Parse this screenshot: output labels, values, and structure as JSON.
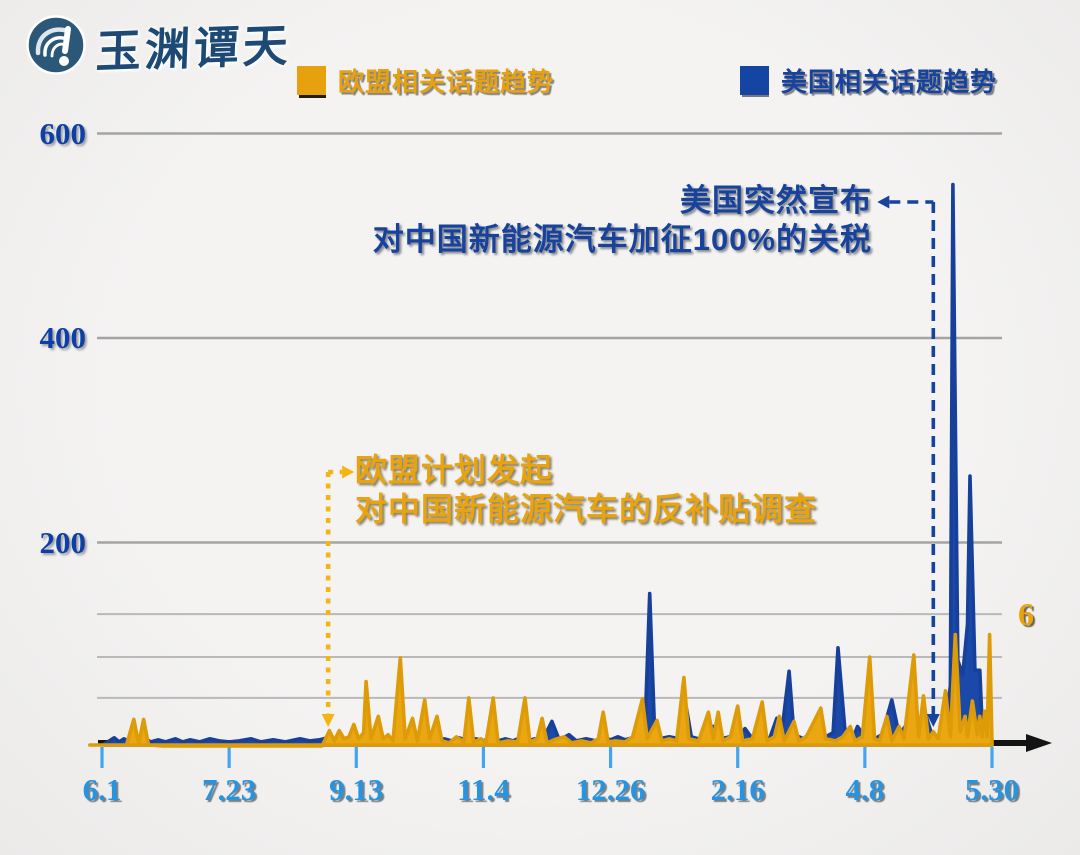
{
  "logo": {
    "brand_name": "玉渊谭天"
  },
  "legend": [
    {
      "label": "欧盟相关话题趋势",
      "color": "#e7a10e"
    },
    {
      "label": "美国相关话题趋势",
      "color": "#17439e"
    }
  ],
  "annotations": {
    "us": {
      "line1": "美国突然宣布",
      "line2": "对中国新能源汽车加征100%的关税",
      "color": "#17439e"
    },
    "eu": {
      "line1": "欧盟计划发起",
      "line2": "对中国新能源汽车的反补贴调查",
      "color": "#e8a30f"
    },
    "side_label": "6"
  },
  "chart_data": {
    "type": "line",
    "title": "",
    "x_axis": {
      "unit": "date (month.day)",
      "tick_labels": [
        "6.1",
        "7.23",
        "9.13",
        "11.4",
        "12.26",
        "2.16",
        "4.8",
        "5.30"
      ],
      "tick_days": [
        0,
        52,
        104,
        156,
        208,
        260,
        312,
        364
      ],
      "total_days": 364
    },
    "y_axis": {
      "range": [
        0,
        600
      ],
      "ticks": [
        {
          "value": 600,
          "label": "600"
        },
        {
          "value": 400,
          "label": "400"
        },
        {
          "value": 200,
          "label": "200"
        }
      ],
      "minor_gridline_values": [
        130,
        88,
        48
      ],
      "grid": true
    },
    "legend_position": "top",
    "event_markers": [
      {
        "name": "eu-probe",
        "day": 92.5,
        "style": "dotted",
        "color": "#f3b514",
        "label": [
          "欧盟计划发起",
          "对中国新能源汽车的反补贴调查"
        ]
      },
      {
        "name": "us-tariff",
        "day": 340,
        "style": "dashed",
        "color": "#17439e",
        "label": [
          "美国突然宣布",
          "对中国新能源汽车加征100%的关税"
        ]
      }
    ],
    "series": [
      {
        "name": "美国相关话题趋势",
        "color": "#1b49aa",
        "stroke": "#16409a",
        "points": [
          [
            1,
            3
          ],
          [
            3,
            6
          ],
          [
            5,
            9
          ],
          [
            7,
            5
          ],
          [
            9,
            8
          ],
          [
            11,
            5
          ],
          [
            13,
            10
          ],
          [
            15,
            6
          ],
          [
            17,
            9
          ],
          [
            20,
            5
          ],
          [
            23,
            7
          ],
          [
            26,
            5
          ],
          [
            30,
            8
          ],
          [
            33,
            5
          ],
          [
            36,
            7
          ],
          [
            40,
            5
          ],
          [
            44,
            8
          ],
          [
            48,
            6
          ],
          [
            52,
            5
          ],
          [
            56,
            6
          ],
          [
            61,
            8
          ],
          [
            65,
            5
          ],
          [
            70,
            7
          ],
          [
            75,
            5
          ],
          [
            81,
            8
          ],
          [
            85,
            6
          ],
          [
            89,
            7
          ],
          [
            92,
            9
          ],
          [
            94,
            6
          ],
          [
            97,
            9
          ],
          [
            100,
            6
          ],
          [
            103,
            10
          ],
          [
            106,
            6
          ],
          [
            110,
            9
          ],
          [
            113,
            6
          ],
          [
            116,
            8
          ],
          [
            119,
            6
          ],
          [
            122,
            9
          ],
          [
            125,
            6
          ],
          [
            128,
            8
          ],
          [
            131,
            6
          ],
          [
            134,
            9
          ],
          [
            137,
            6
          ],
          [
            140,
            8
          ],
          [
            143,
            6
          ],
          [
            146,
            9
          ],
          [
            150,
            6
          ],
          [
            153,
            8
          ],
          [
            156,
            6
          ],
          [
            159,
            9
          ],
          [
            162,
            6
          ],
          [
            165,
            8
          ],
          [
            168,
            6
          ],
          [
            171,
            9
          ],
          [
            174,
            6
          ],
          [
            177,
            8
          ],
          [
            180,
            6
          ],
          [
            184,
            25
          ],
          [
            187,
            7
          ],
          [
            191,
            12
          ],
          [
            194,
            6
          ],
          [
            198,
            8
          ],
          [
            202,
            6
          ],
          [
            205,
            9
          ],
          [
            208,
            7
          ],
          [
            211,
            10
          ],
          [
            214,
            7
          ],
          [
            217,
            9
          ],
          [
            220,
            8
          ],
          [
            222,
            12
          ],
          [
            224,
            150
          ],
          [
            226,
            15
          ],
          [
            228,
            8
          ],
          [
            232,
            10
          ],
          [
            236,
            8
          ],
          [
            239,
            38
          ],
          [
            241,
            10
          ],
          [
            244,
            8
          ],
          [
            247,
            12
          ],
          [
            250,
            20
          ],
          [
            253,
            8
          ],
          [
            257,
            10
          ],
          [
            260,
            8
          ],
          [
            263,
            18
          ],
          [
            266,
            8
          ],
          [
            269,
            10
          ],
          [
            273,
            8
          ],
          [
            276,
            28
          ],
          [
            278,
            14
          ],
          [
            281,
            74
          ],
          [
            283,
            12
          ],
          [
            287,
            8
          ],
          [
            290,
            15
          ],
          [
            293,
            8
          ],
          [
            296,
            10
          ],
          [
            299,
            14
          ],
          [
            301,
            97
          ],
          [
            304,
            12
          ],
          [
            307,
            8
          ],
          [
            309,
            20
          ],
          [
            312,
            10
          ],
          [
            316,
            8
          ],
          [
            319,
            12
          ],
          [
            323,
            46
          ],
          [
            326,
            12
          ],
          [
            330,
            25
          ],
          [
            334,
            12
          ],
          [
            337,
            30
          ],
          [
            339,
            15
          ],
          [
            341,
            10
          ],
          [
            343,
            8
          ],
          [
            345,
            20
          ],
          [
            347,
            60
          ],
          [
            348,
            550
          ],
          [
            350,
            85
          ],
          [
            352,
            70
          ],
          [
            354,
            120
          ],
          [
            355,
            265
          ],
          [
            357,
            75
          ],
          [
            359,
            75
          ],
          [
            360,
            20
          ],
          [
            361,
            12
          ],
          [
            362,
            15
          ],
          [
            363,
            35
          ],
          [
            364,
            6
          ]
        ]
      },
      {
        "name": "欧盟相关话题趋势",
        "color": "#eaa711",
        "stroke": "#dd9b07",
        "points": [
          [
            -5,
            2
          ],
          [
            0,
            2
          ],
          [
            5,
            2
          ],
          [
            10,
            2
          ],
          [
            13,
            27
          ],
          [
            15,
            3
          ],
          [
            17,
            27
          ],
          [
            19,
            2
          ],
          [
            25,
            1
          ],
          [
            35,
            1
          ],
          [
            45,
            1
          ],
          [
            55,
            1
          ],
          [
            65,
            1
          ],
          [
            75,
            1
          ],
          [
            85,
            1
          ],
          [
            90,
            1
          ],
          [
            93,
            16
          ],
          [
            95,
            6
          ],
          [
            97,
            16
          ],
          [
            99,
            8
          ],
          [
            101,
            10
          ],
          [
            103,
            22
          ],
          [
            105,
            8
          ],
          [
            107,
            14
          ],
          [
            108,
            64
          ],
          [
            110,
            8
          ],
          [
            113,
            30
          ],
          [
            115,
            8
          ],
          [
            117,
            12
          ],
          [
            119,
            6
          ],
          [
            122,
            87
          ],
          [
            124,
            8
          ],
          [
            127,
            28
          ],
          [
            129,
            6
          ],
          [
            132,
            46
          ],
          [
            134,
            8
          ],
          [
            137,
            30
          ],
          [
            139,
            6
          ],
          [
            142,
            4
          ],
          [
            145,
            10
          ],
          [
            148,
            5
          ],
          [
            150,
            48
          ],
          [
            152,
            5
          ],
          [
            155,
            8
          ],
          [
            157,
            4
          ],
          [
            160,
            48
          ],
          [
            162,
            4
          ],
          [
            166,
            6
          ],
          [
            170,
            5
          ],
          [
            173,
            48
          ],
          [
            175,
            5
          ],
          [
            178,
            8
          ],
          [
            180,
            28
          ],
          [
            182,
            4
          ],
          [
            186,
            8
          ],
          [
            189,
            10
          ],
          [
            192,
            4
          ],
          [
            196,
            6
          ],
          [
            200,
            4
          ],
          [
            203,
            8
          ],
          [
            205,
            34
          ],
          [
            207,
            5
          ],
          [
            210,
            6
          ],
          [
            214,
            5
          ],
          [
            217,
            10
          ],
          [
            221,
            47
          ],
          [
            223,
            8
          ],
          [
            227,
            26
          ],
          [
            229,
            6
          ],
          [
            232,
            8
          ],
          [
            235,
            6
          ],
          [
            238,
            68
          ],
          [
            240,
            8
          ],
          [
            244,
            6
          ],
          [
            248,
            34
          ],
          [
            250,
            8
          ],
          [
            252,
            34
          ],
          [
            254,
            6
          ],
          [
            257,
            10
          ],
          [
            260,
            40
          ],
          [
            262,
            6
          ],
          [
            266,
            8
          ],
          [
            270,
            44
          ],
          [
            272,
            6
          ],
          [
            275,
            10
          ],
          [
            277,
            30
          ],
          [
            279,
            6
          ],
          [
            283,
            25
          ],
          [
            285,
            6
          ],
          [
            288,
            10
          ],
          [
            294,
            38
          ],
          [
            296,
            8
          ],
          [
            300,
            6
          ],
          [
            303,
            10
          ],
          [
            306,
            20
          ],
          [
            308,
            6
          ],
          [
            311,
            10
          ],
          [
            314,
            88
          ],
          [
            316,
            8
          ],
          [
            318,
            6
          ],
          [
            321,
            30
          ],
          [
            323,
            6
          ],
          [
            326,
            20
          ],
          [
            328,
            8
          ],
          [
            332,
            90
          ],
          [
            334,
            10
          ],
          [
            336,
            50
          ],
          [
            338,
            8
          ],
          [
            340,
            15
          ],
          [
            342,
            8
          ],
          [
            345,
            55
          ],
          [
            347,
            10
          ],
          [
            349,
            110
          ],
          [
            351,
            15
          ],
          [
            353,
            30
          ],
          [
            354,
            10
          ],
          [
            356,
            45
          ],
          [
            358,
            12
          ],
          [
            359,
            30
          ],
          [
            360,
            10
          ],
          [
            361,
            35
          ],
          [
            362,
            10
          ],
          [
            363,
            110
          ],
          [
            364,
            3
          ]
        ]
      }
    ]
  }
}
